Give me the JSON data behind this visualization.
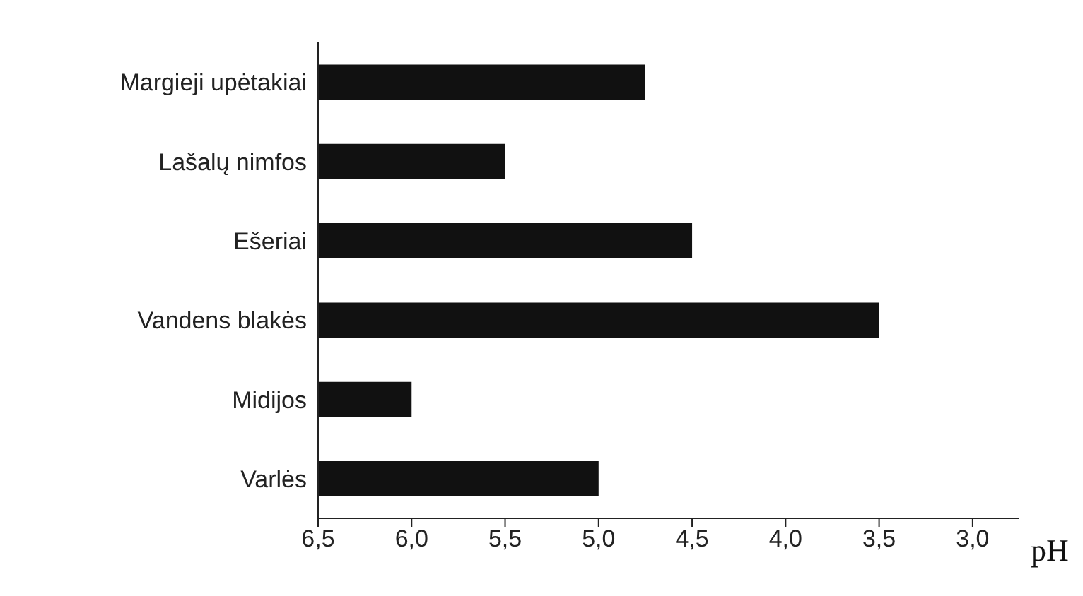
{
  "chart_data": {
    "type": "bar",
    "orientation": "horizontal",
    "xlabel": "pH",
    "categories": [
      "Margieji upėtakiai",
      "Lašalų nimfos",
      "Ešeriai",
      "Vandens blakės",
      "Midijos",
      "Varlės"
    ],
    "base": [
      6.5,
      6.5,
      6.5,
      6.5,
      6.5,
      6.5
    ],
    "values": [
      -1.75,
      -1.0,
      -2.0,
      -3.0,
      -0.5,
      -1.5
    ],
    "color": "#111111",
    "xlim": [
      6.5,
      2.75
    ],
    "xticks": [
      {
        "value": 6.5,
        "label": "6,5"
      },
      {
        "value": 6.0,
        "label": "6,0"
      },
      {
        "value": 5.5,
        "label": "5,5"
      },
      {
        "value": 5.0,
        "label": "5,0"
      },
      {
        "value": 4.5,
        "label": "4,5"
      },
      {
        "value": 4.0,
        "label": "4,0"
      },
      {
        "value": 3.5,
        "label": "3,5"
      },
      {
        "value": 3.0,
        "label": "3,0"
      }
    ],
    "grid": false,
    "legend": false
  }
}
